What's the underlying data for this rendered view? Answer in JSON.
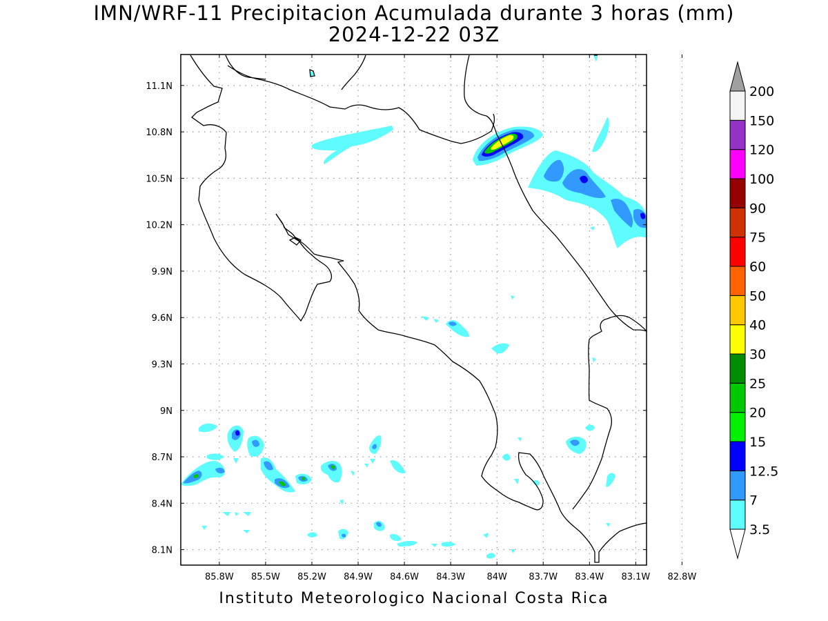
{
  "title": "IMN/WRF-11 Precipitacion Acumulada durante 3 horas (mm)",
  "subtitle": "2024-12-22 03Z",
  "credit": "Instituto Meteorologico Nacional Costa Rica",
  "map": {
    "lat_labels": [
      {
        "value": 11.1,
        "label": "11.1N"
      },
      {
        "value": 10.8,
        "label": "10.8N"
      },
      {
        "value": 10.5,
        "label": "10.5N"
      },
      {
        "value": 10.2,
        "label": "10.2N"
      },
      {
        "value": 9.9,
        "label": "9.9N"
      },
      {
        "value": 9.6,
        "label": "9.6N"
      },
      {
        "value": 9.3,
        "label": "9.3N"
      },
      {
        "value": 9.0,
        "label": "9N"
      },
      {
        "value": 8.7,
        "label": "8.7N"
      },
      {
        "value": 8.4,
        "label": "8.4N"
      },
      {
        "value": 8.1,
        "label": "8.1N"
      }
    ],
    "lon_labels": [
      {
        "value": -85.8,
        "label": "85.8W"
      },
      {
        "value": -85.5,
        "label": "85.5W"
      },
      {
        "value": -85.2,
        "label": "85.2W"
      },
      {
        "value": -84.9,
        "label": "84.9W"
      },
      {
        "value": -84.6,
        "label": "84.6W"
      },
      {
        "value": -84.3,
        "label": "84.3W"
      },
      {
        "value": -84.0,
        "label": "84W"
      },
      {
        "value": -83.7,
        "label": "83.7W"
      },
      {
        "value": -83.4,
        "label": "83.4W"
      },
      {
        "value": -83.1,
        "label": "83.1W"
      },
      {
        "value": -82.8,
        "label": "82.8W"
      }
    ],
    "lon_range": [
      -86.05,
      -83.03
    ],
    "lat_range": [
      8.0,
      11.3
    ],
    "grid": true
  },
  "colorbar": {
    "levels": [
      "3.5",
      "7",
      "12.5",
      "15",
      "20",
      "25",
      "30",
      "40",
      "50",
      "60",
      "75",
      "90",
      "100",
      "120",
      "150",
      "200"
    ],
    "colors": [
      "#ffffff",
      "#5efcfc",
      "#3299ff",
      "#0000ff",
      "#00f000",
      "#00c800",
      "#008c00",
      "#ffff00",
      "#ffc800",
      "#ff6400",
      "#ff0000",
      "#cd3200",
      "#960000",
      "#ff00ff",
      "#9632c8",
      "#f5f5f5",
      "#a0a0a0"
    ]
  }
}
